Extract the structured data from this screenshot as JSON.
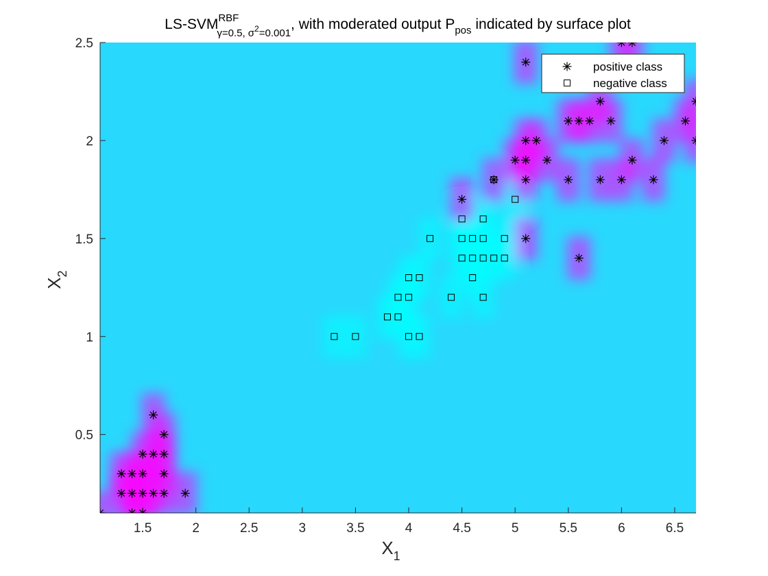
{
  "chart_data": {
    "type": "scatter",
    "title": {
      "part1": "LS-SVM",
      "sup1": "RBF",
      "sub1": "γ=0.5, σ",
      "sub1_sup": "2",
      "sub1_tail": "=0.001",
      "part2": ", with moderated output P",
      "sub2": "pos",
      "part3": " indicated by surface plot"
    },
    "xlabel": {
      "main": "X",
      "sub": "1"
    },
    "ylabel": {
      "main": "X",
      "sub": "2"
    },
    "xlim": [
      1.1,
      6.7
    ],
    "ylim": [
      0.1,
      2.5
    ],
    "xticks": [
      "1.5",
      "2",
      "2.5",
      "3",
      "3.5",
      "4",
      "4.5",
      "5",
      "5.5",
      "6",
      "6.5"
    ],
    "yticks": [
      "0.5",
      "1",
      "1.5",
      "2",
      "2.5"
    ],
    "legend_position": "top-right",
    "background_color": "#29d8fd",
    "surface_colors": {
      "positive": "#ff00ff",
      "negative": "#00ffff"
    },
    "series": [
      {
        "name": "positive class",
        "marker": "asterisk",
        "points": [
          [
            1.1,
            0.1
          ],
          [
            1.4,
            0.1
          ],
          [
            1.5,
            0.1
          ],
          [
            1.3,
            0.2
          ],
          [
            1.4,
            0.2
          ],
          [
            1.5,
            0.2
          ],
          [
            1.6,
            0.2
          ],
          [
            1.7,
            0.2
          ],
          [
            1.9,
            0.2
          ],
          [
            1.3,
            0.3
          ],
          [
            1.4,
            0.3
          ],
          [
            1.5,
            0.3
          ],
          [
            1.7,
            0.3
          ],
          [
            1.5,
            0.4
          ],
          [
            1.6,
            0.4
          ],
          [
            1.7,
            0.4
          ],
          [
            1.7,
            0.5
          ],
          [
            1.6,
            0.6
          ],
          [
            4.5,
            1.7
          ],
          [
            5.1,
            1.5
          ],
          [
            5.6,
            1.4
          ],
          [
            4.8,
            1.8
          ],
          [
            5.0,
            1.9
          ],
          [
            5.1,
            1.9
          ],
          [
            5.3,
            1.9
          ],
          [
            5.1,
            1.8
          ],
          [
            5.5,
            1.8
          ],
          [
            5.8,
            1.8
          ],
          [
            6.0,
            1.8
          ],
          [
            6.3,
            1.8
          ],
          [
            6.1,
            1.9
          ],
          [
            5.1,
            2.0
          ],
          [
            5.2,
            2.0
          ],
          [
            6.4,
            2.0
          ],
          [
            6.7,
            2.0
          ],
          [
            5.5,
            2.1
          ],
          [
            5.6,
            2.1
          ],
          [
            5.7,
            2.1
          ],
          [
            5.9,
            2.1
          ],
          [
            6.6,
            2.1
          ],
          [
            5.8,
            2.2
          ],
          [
            6.7,
            2.2
          ],
          [
            5.1,
            2.4
          ],
          [
            6.0,
            2.5
          ],
          [
            6.1,
            2.5
          ]
        ]
      },
      {
        "name": "negative class",
        "marker": "square",
        "points": [
          [
            3.3,
            1.0
          ],
          [
            3.5,
            1.0
          ],
          [
            4.0,
            1.0
          ],
          [
            4.1,
            1.0
          ],
          [
            3.8,
            1.1
          ],
          [
            3.9,
            1.1
          ],
          [
            3.9,
            1.2
          ],
          [
            4.0,
            1.2
          ],
          [
            4.4,
            1.2
          ],
          [
            4.7,
            1.2
          ],
          [
            4.0,
            1.3
          ],
          [
            4.1,
            1.3
          ],
          [
            4.6,
            1.3
          ],
          [
            4.5,
            1.4
          ],
          [
            4.6,
            1.4
          ],
          [
            4.7,
            1.4
          ],
          [
            4.8,
            1.4
          ],
          [
            4.9,
            1.4
          ],
          [
            4.2,
            1.5
          ],
          [
            4.5,
            1.5
          ],
          [
            4.6,
            1.5
          ],
          [
            4.7,
            1.5
          ],
          [
            4.9,
            1.5
          ],
          [
            4.5,
            1.6
          ],
          [
            4.7,
            1.6
          ],
          [
            5.0,
            1.7
          ],
          [
            4.8,
            1.8
          ]
        ]
      }
    ]
  }
}
